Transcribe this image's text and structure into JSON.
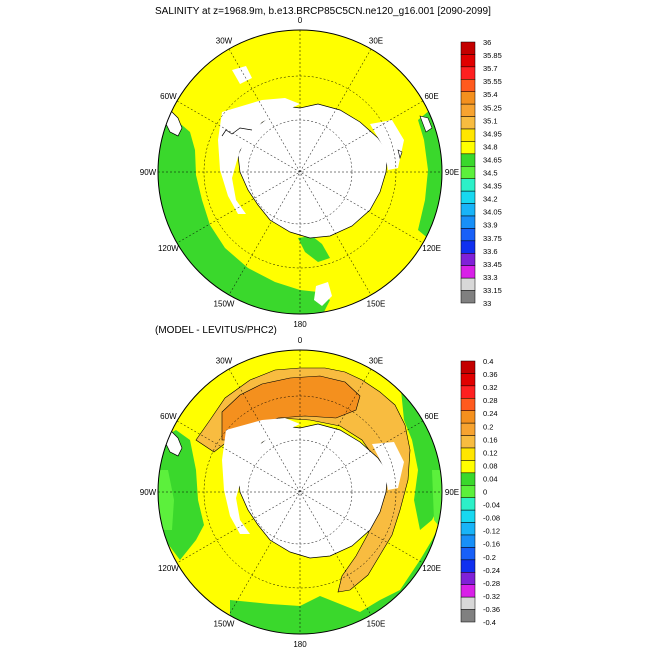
{
  "titles": {
    "top": "SALINITY at z=1968.9m, b.e13.BRCP85C5CN.ne120_g16.001 [2090-2099]",
    "bottom": "(MODEL - LEVITUS/PHC2)"
  },
  "maps": {
    "top": {
      "lon_labels": [
        "0",
        "30E",
        "60E",
        "90E",
        "120E",
        "150E",
        "180",
        "150W",
        "120W",
        "90W",
        "60W",
        "30W"
      ],
      "colorbar": {
        "labels": [
          "36",
          "35.85",
          "35.7",
          "35.55",
          "35.4",
          "35.25",
          "35.1",
          "34.95",
          "34.8",
          "34.65",
          "34.5",
          "34.35",
          "34.2",
          "34.05",
          "33.9",
          "33.75",
          "33.6",
          "33.45",
          "33.3",
          "33.15",
          "33"
        ],
        "colors": [
          "#c40000",
          "#e00000",
          "#ff2020",
          "#ff5a1e",
          "#f4901e",
          "#f7a330",
          "#f8bc40",
          "#ffe600",
          "#ffff00",
          "#3ad82c",
          "#5cf03c",
          "#2cf0c8",
          "#18d8f0",
          "#18b4f8",
          "#1890f8",
          "#1860f8",
          "#1030f0",
          "#8020d8",
          "#d820e8",
          "#d8d8d8",
          "#808080"
        ]
      }
    },
    "bottom": {
      "lon_labels": [
        "0",
        "30E",
        "60E",
        "90E",
        "120E",
        "150E",
        "180",
        "150W",
        "120W",
        "90W",
        "60W",
        "30W"
      ],
      "colorbar": {
        "labels": [
          "0.4",
          "0.36",
          "0.32",
          "0.28",
          "0.24",
          "0.2",
          "0.16",
          "0.12",
          "0.08",
          "0.04",
          "0",
          "-0.04",
          "-0.08",
          "-0.12",
          "-0.16",
          "-0.2",
          "-0.24",
          "-0.28",
          "-0.32",
          "-0.36",
          "-0.4"
        ],
        "colors": [
          "#c40000",
          "#e00000",
          "#ff2020",
          "#ff5a1e",
          "#f4901e",
          "#f7a330",
          "#f8bc40",
          "#ffe600",
          "#ffff00",
          "#3ad82c",
          "#5cf03c",
          "#2cf0c8",
          "#18d8f0",
          "#18b4f8",
          "#1890f8",
          "#1860f8",
          "#1030f0",
          "#8020d8",
          "#d820e8",
          "#d8d8d8",
          "#808080"
        ]
      }
    }
  }
}
